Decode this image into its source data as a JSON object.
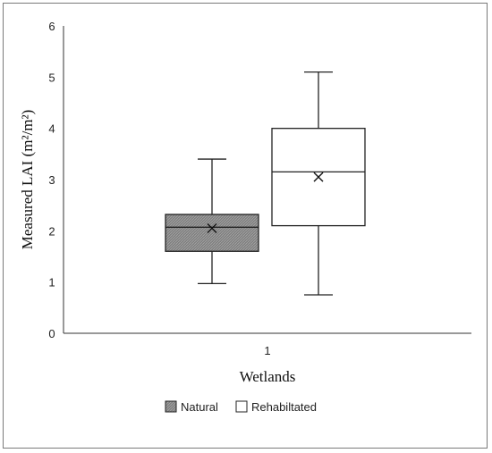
{
  "chart_data": {
    "type": "box",
    "title": "",
    "xlabel": "Wetlands",
    "ylabel": "Measured LAI (m²/m²)",
    "ylim": [
      0,
      6
    ],
    "yticks": [
      "0",
      "1",
      "2",
      "3",
      "4",
      "5",
      "6"
    ],
    "categories": [
      "1"
    ],
    "grid": false,
    "legend_position": "bottom",
    "series": [
      {
        "name": "Natural",
        "min": 0.97,
        "q1": 1.6,
        "median": 2.07,
        "q3": 2.32,
        "max": 3.4,
        "mean": 2.05,
        "color": "#8c8c8c"
      },
      {
        "name": "Rehabiltated",
        "min": 0.75,
        "q1": 2.1,
        "median": 3.15,
        "q3": 4.0,
        "max": 5.1,
        "mean": 3.05,
        "color": "#ffffff"
      }
    ]
  }
}
